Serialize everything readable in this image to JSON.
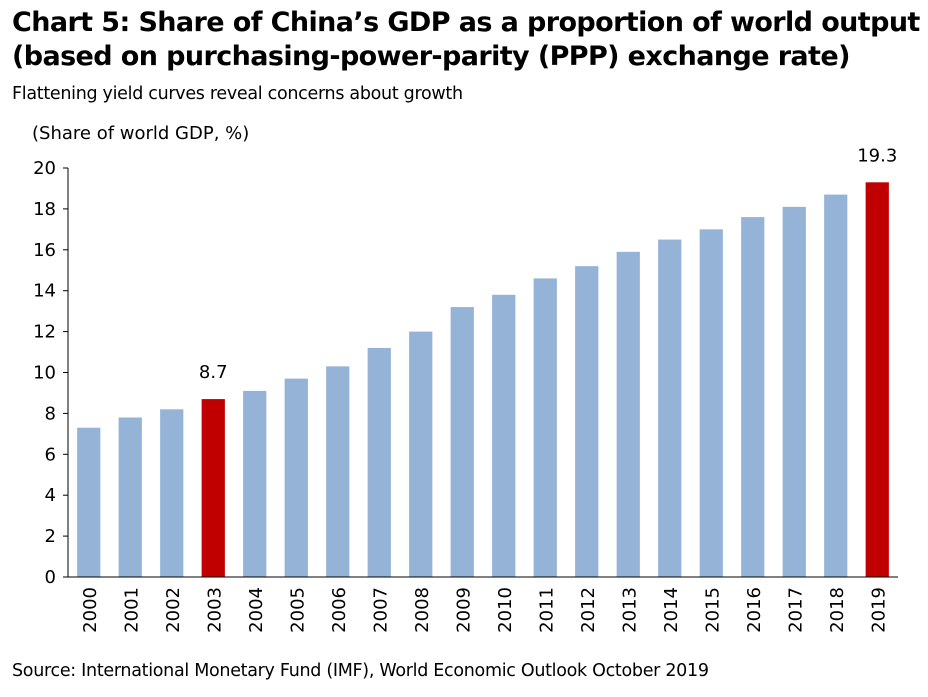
{
  "header": {
    "title_line1": "Chart 5: Share of China’s GDP as a proportion of world output",
    "title_line2": "(based on purchasing-power-parity (PPP) exchange rate)",
    "subtitle": "Flattening yield curves reveal concerns about growth"
  },
  "footer": {
    "source": "Source: International Monetary Fund (IMF), World Economic Outlook October 2019"
  },
  "colors": {
    "bar": "#95B3D7",
    "highlight": "#C00000",
    "axis": "#000000"
  },
  "chart_data": {
    "type": "bar",
    "title": "Chart 5: Share of China’s GDP as a proportion of world output (based on purchasing-power-parity (PPP) exchange rate)",
    "subtitle": "Flattening yield curves reveal concerns about growth",
    "ylabel": "(Share of world GDP, %)",
    "xlabel": "",
    "ylim": [
      0,
      20
    ],
    "yticks": [
      "0",
      "2",
      "4",
      "6",
      "8",
      "10",
      "12",
      "14",
      "16",
      "18",
      "20"
    ],
    "grid": false,
    "categories": [
      "2000",
      "2001",
      "2002",
      "2003",
      "2004",
      "2005",
      "2006",
      "2007",
      "2008",
      "2009",
      "2010",
      "2011",
      "2012",
      "2013",
      "2014",
      "2015",
      "2016",
      "2017",
      "2018",
      "2019"
    ],
    "values": [
      7.3,
      7.8,
      8.2,
      8.7,
      9.1,
      9.7,
      10.3,
      11.2,
      12.0,
      13.2,
      13.8,
      14.6,
      15.2,
      15.9,
      16.5,
      17.0,
      17.6,
      18.1,
      18.7,
      19.3
    ],
    "highlighted": [
      "2003",
      "2019"
    ],
    "data_labels": [
      {
        "category": "2003",
        "text": "8.7"
      },
      {
        "category": "2019",
        "text": "19.3"
      }
    ]
  }
}
